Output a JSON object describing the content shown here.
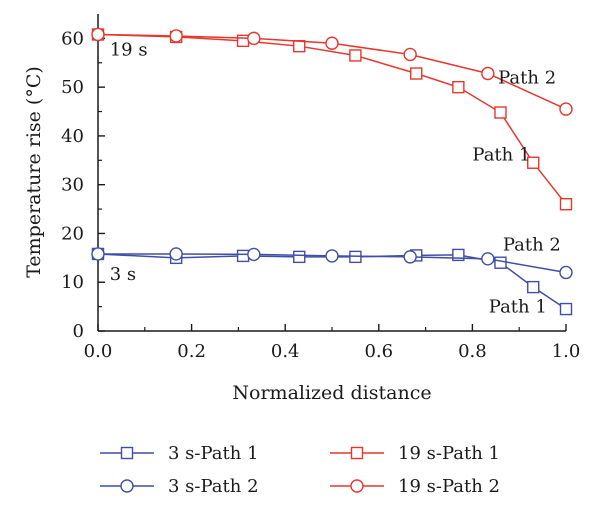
{
  "chart_data": {
    "type": "line",
    "xlabel": "Normalized distance",
    "ylabel": "Temperature rise (°C)",
    "xlim": [
      0,
      1
    ],
    "ylim": [
      0,
      65
    ],
    "xticks": [
      0.0,
      0.2,
      0.4,
      0.6,
      0.8,
      1.0
    ],
    "xtick_labels": [
      "0.0",
      "0.2",
      "0.4",
      "0.6",
      "0.8",
      "1.0"
    ],
    "yticks": [
      0,
      10,
      20,
      30,
      40,
      50,
      60
    ],
    "ytick_labels": [
      "0",
      "10",
      "20",
      "30",
      "40",
      "50",
      "60"
    ],
    "grid": false,
    "legend_position": "bottom",
    "series": [
      {
        "name": "3 s-Path 1",
        "color": "#3f4fa8",
        "marker": "square",
        "x": [
          0.0,
          0.167,
          0.31,
          0.43,
          0.55,
          0.68,
          0.77,
          0.86,
          0.93,
          1.0
        ],
        "y": [
          15.8,
          15.0,
          15.4,
          15.2,
          15.2,
          15.5,
          15.6,
          14.0,
          9.0,
          4.5
        ]
      },
      {
        "name": "3 s-Path 2",
        "color": "#3f4fa8",
        "marker": "circle",
        "x": [
          0.0,
          0.167,
          0.333,
          0.5,
          0.667,
          0.833,
          1.0
        ],
        "y": [
          15.8,
          15.8,
          15.7,
          15.4,
          15.2,
          14.8,
          12.0
        ]
      },
      {
        "name": "19 s-Path 1",
        "color": "#e8362e",
        "marker": "square",
        "x": [
          0.0,
          0.167,
          0.31,
          0.43,
          0.55,
          0.68,
          0.77,
          0.86,
          0.93,
          1.0
        ],
        "y": [
          60.8,
          60.3,
          59.5,
          58.4,
          56.5,
          52.8,
          50.0,
          44.8,
          34.5,
          26.0
        ]
      },
      {
        "name": "19 s-Path 2",
        "color": "#e8362e",
        "marker": "circle",
        "x": [
          0.0,
          0.167,
          0.333,
          0.5,
          0.667,
          0.833,
          1.0
        ],
        "y": [
          60.8,
          60.5,
          60.0,
          59.0,
          56.7,
          52.8,
          45.5
        ]
      }
    ],
    "annotations": [
      {
        "text": "19 s",
        "x": 0.025,
        "y": 56.5
      },
      {
        "text": "3 s",
        "x": 0.025,
        "y": 10.5
      },
      {
        "text": "Path 2",
        "x": 0.855,
        "y": 50.8
      },
      {
        "text": "Path 1",
        "x": 0.8,
        "y": 35.0
      },
      {
        "text": "Path 2",
        "x": 0.865,
        "y": 16.5
      },
      {
        "text": "Path 1",
        "x": 0.835,
        "y": 3.8
      }
    ]
  }
}
